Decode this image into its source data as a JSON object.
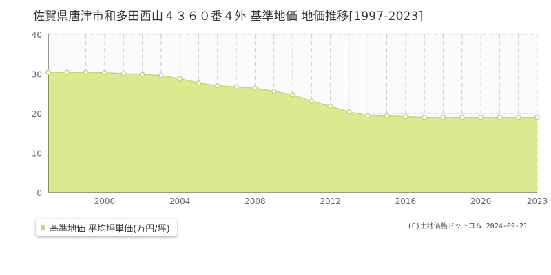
{
  "chart_data": {
    "type": "area",
    "title": "佐賀県唐津市和多田西山４３６０番４外 基準地価 地価推移[1997-2023]",
    "series": [
      {
        "name": "基準地価 平均坪単価(万円/坪)",
        "color": "#dde98f",
        "line_color": "#c4d96a",
        "x": [
          1997,
          1998,
          1999,
          2000,
          2001,
          2002,
          2003,
          2004,
          2005,
          2006,
          2007,
          2008,
          2009,
          2010,
          2011,
          2012,
          2013,
          2014,
          2015,
          2016,
          2017,
          2018,
          2019,
          2020,
          2021,
          2022,
          2023
        ],
        "values": [
          30.4,
          30.4,
          30.4,
          30.3,
          30.1,
          29.9,
          29.6,
          28.8,
          27.7,
          27.0,
          26.7,
          26.4,
          25.6,
          24.7,
          23.1,
          21.8,
          20.4,
          19.4,
          19.4,
          19.2,
          19.0,
          19.0,
          19.0,
          19.0,
          19.0,
          19.0,
          19.0
        ]
      }
    ],
    "x_ticks": [
      "2000",
      "2004",
      "2008",
      "2012",
      "2016",
      "2020",
      "2023"
    ],
    "x_tick_values": [
      2000,
      2004,
      2008,
      2012,
      2016,
      2020,
      2023
    ],
    "y_ticks": [
      "0",
      "10",
      "20",
      "30",
      "40"
    ],
    "y_tick_values": [
      0,
      10,
      20,
      30,
      40
    ],
    "xlim": [
      1997,
      2023
    ],
    "ylim": [
      0,
      40
    ],
    "grid": true,
    "legend_position": "bottom-left"
  },
  "copyright": "(C)土地価格ドットコム 2024-09-21"
}
